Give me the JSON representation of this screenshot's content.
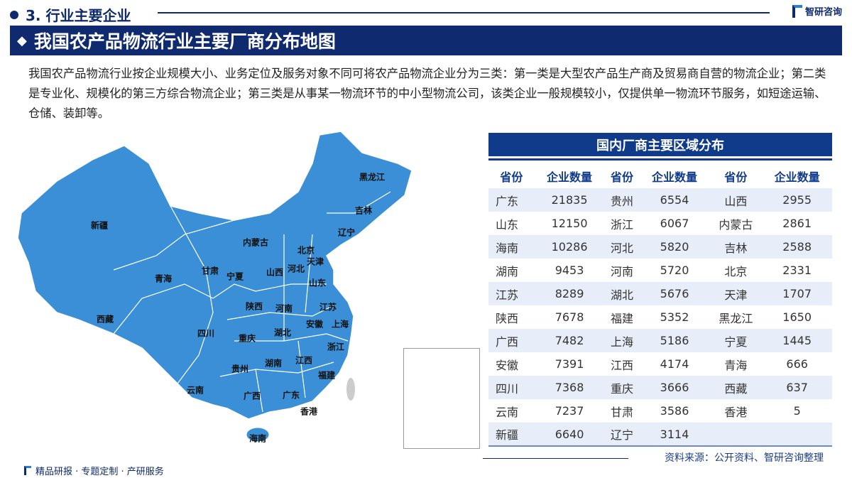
{
  "section": "3. 行业主要企业",
  "brand": "智研咨询",
  "banner": "我国农产品物流行业主要厂商分布地图",
  "paragraph": "我国农产品物流行业按企业规模大小、业务定位及服务对象不同可将农产品物流企业分为三类：第一类是大型农产品生产商及贸易商自营的物流企业；第二类是专业化、规模化的第三方综合物流企业；第三类是从事某一物流环节的中小型物流公司，该类企业一般规模较小，仅提供单一物流环节服务，如短途运输、仓储、装卸等。",
  "table": {
    "title": "国内厂商主要区域分布",
    "headers": [
      "省份",
      "企业数量",
      "省份",
      "企业数量",
      "省份",
      "企业数量"
    ],
    "rows": [
      [
        "广东",
        "21835",
        "贵州",
        "6554",
        "山西",
        "2955"
      ],
      [
        "山东",
        "12150",
        "浙江",
        "6067",
        "内蒙古",
        "2861"
      ],
      [
        "海南",
        "10286",
        "河北",
        "5820",
        "吉林",
        "2588"
      ],
      [
        "湖南",
        "9453",
        "河南",
        "5720",
        "北京",
        "2331"
      ],
      [
        "江苏",
        "8289",
        "湖北",
        "5676",
        "天津",
        "1707"
      ],
      [
        "陕西",
        "7678",
        "福建",
        "5352",
        "黑龙江",
        "1650"
      ],
      [
        "广西",
        "7482",
        "上海",
        "5186",
        "宁夏",
        "1445"
      ],
      [
        "安徽",
        "7391",
        "江西",
        "4174",
        "青海",
        "666"
      ],
      [
        "四川",
        "7368",
        "重庆",
        "3666",
        "西藏",
        "637"
      ],
      [
        "云南",
        "7237",
        "甘肃",
        "3586",
        "香港",
        "5"
      ],
      [
        "新疆",
        "6640",
        "辽宁",
        "3114",
        "",
        ""
      ]
    ]
  },
  "map_labels": [
    "新疆",
    "西藏",
    "青海",
    "甘肃",
    "宁夏",
    "内蒙古",
    "四川",
    "陕西",
    "山西",
    "河北",
    "北京",
    "天津",
    "山东",
    "河南",
    "江苏",
    "安徽",
    "上海",
    "湖北",
    "重庆",
    "湖南",
    "江西",
    "浙江",
    "贵州",
    "福建",
    "云南",
    "广西",
    "广东",
    "香港",
    "海南",
    "黑龙江",
    "吉林",
    "辽宁"
  ],
  "map_color": "#3a8fd6",
  "source": "资料来源：公开资料、智研咨询整理",
  "footer": "精品研报 · 专题定制 · 产研服务"
}
